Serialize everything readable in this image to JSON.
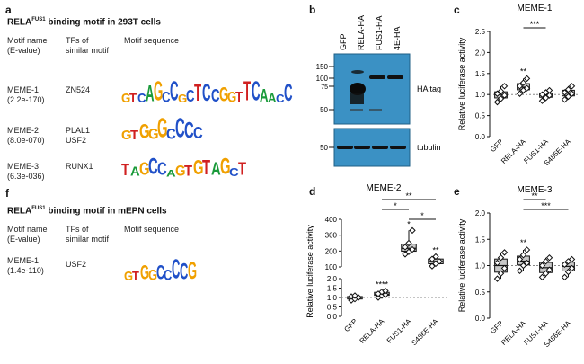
{
  "panel_a": {
    "letter": "a",
    "title_main": "RELA",
    "title_sup": "FUS1",
    "title_rest": " binding motif in 293T cells",
    "headers": {
      "motif_name": "Motif name",
      "evalue": "(E-value)",
      "tfs": "TFs of",
      "tfs2": "similar motif",
      "seq": "Motif sequence"
    },
    "motifs": [
      {
        "name": "MEME-1",
        "evalue": "(2.2e-170)",
        "tf": "ZN524",
        "tf2": "",
        "logo": "GTCAGCCGCTCCGGTTCAACC"
      },
      {
        "name": "MEME-2",
        "evalue": "(8.0e-070)",
        "tf": "PLAL1",
        "tf2": "USF2",
        "logo": "GTGGGCCCC"
      },
      {
        "name": "MEME-3",
        "evalue": "(6.3e-036)",
        "tf": "RUNX1",
        "tf2": "",
        "logo": "TAGCCAGTGTAGCT"
      }
    ]
  },
  "panel_f": {
    "letter": "f",
    "title_main": "RELA",
    "title_sup": "FUS1",
    "title_rest": " binding motif in mEPN cells",
    "headers": {
      "motif_name": "Motif name",
      "evalue": "(E-value)",
      "tfs": "TFs of",
      "tfs2": "similar motif",
      "seq": "Motif sequence"
    },
    "motifs": [
      {
        "name": "MEME-1",
        "evalue": "(1.4e-110)",
        "tf": "USF2",
        "tf2": "",
        "logo": "GTGGCCCCG"
      }
    ]
  },
  "panel_b": {
    "letter": "b",
    "lanes": [
      "GFP",
      "RELA-HA",
      "FUS1-HA",
      "4E-HA"
    ],
    "markers": [
      "150",
      "100",
      "75",
      "50"
    ],
    "marker_bottom": "50",
    "label_top": "HA tag",
    "label_bottom": "tubulin"
  },
  "chart_data": [
    {
      "panel": "c",
      "title": "MEME-1",
      "type": "box",
      "ylabel": "Relative luciferase activity",
      "ylim": [
        0,
        2.5
      ],
      "yticks": [
        "0.0",
        "0.5",
        "1.0",
        "1.5",
        "2.0",
        "2.5"
      ],
      "categories": [
        "GFP",
        "RELA-HA",
        "FUS1-HA",
        "S486E-HA"
      ],
      "series": [
        {
          "points": [
            0.82,
            0.9,
            0.98,
            1.02,
            1.08,
            1.2
          ]
        },
        {
          "points": [
            1.02,
            1.1,
            1.15,
            1.2,
            1.28,
            1.38
          ]
        },
        {
          "points": [
            0.85,
            0.92,
            0.98,
            1.0,
            1.05,
            1.1
          ]
        },
        {
          "points": [
            0.88,
            0.95,
            1.02,
            1.05,
            1.12,
            1.2
          ]
        }
      ],
      "significance": [
        {
          "from": 1,
          "to": 2,
          "label": "***"
        },
        {
          "at": 1,
          "label": "**"
        }
      ]
    },
    {
      "panel": "d",
      "title": "MEME-2",
      "type": "box",
      "ylabel": "Relative luciferase activity",
      "yticks_upper": [
        "400",
        "300",
        "200",
        "100"
      ],
      "yticks_lower": [
        "2.0",
        "1.5",
        "1.0",
        "0.5",
        "0.0"
      ],
      "categories": [
        "GFP",
        "RELA-HA",
        "FUS1-HA",
        "S486E-HA"
      ],
      "series": [
        {
          "points": [
            0.85,
            0.92,
            1.0,
            1.05,
            1.1
          ]
        },
        {
          "points": [
            1.0,
            1.1,
            1.15,
            1.2,
            1.3,
            1.35
          ]
        },
        {
          "points": [
            180,
            195,
            210,
            225,
            250,
            330
          ]
        },
        {
          "points": [
            105,
            120,
            135,
            150,
            165
          ]
        }
      ],
      "significance": [
        {
          "from": 1,
          "to": 3,
          "label": "**"
        },
        {
          "from": 1,
          "to": 2,
          "label": "*"
        },
        {
          "from": 2,
          "to": 3,
          "label": "*"
        },
        {
          "at": 1,
          "label": "****"
        },
        {
          "at": 2,
          "label": "*"
        },
        {
          "at": 3,
          "label": "**"
        }
      ]
    },
    {
      "panel": "e",
      "title": "MEME-3",
      "type": "box",
      "ylabel": "Relative luciferase activity",
      "ylim": [
        0,
        2.0
      ],
      "yticks": [
        "0.0",
        "0.5",
        "1.0",
        "1.5",
        "2.0"
      ],
      "categories": [
        "GFP",
        "RELA-HA",
        "FUS1-HA",
        "S486E-HA"
      ],
      "series": [
        {
          "points": [
            0.75,
            0.85,
            0.95,
            1.05,
            1.15,
            1.25
          ]
        },
        {
          "points": [
            0.9,
            1.0,
            1.05,
            1.12,
            1.2,
            1.3
          ]
        },
        {
          "points": [
            0.78,
            0.85,
            0.92,
            1.0,
            1.08,
            1.15
          ]
        },
        {
          "points": [
            0.78,
            0.88,
            0.95,
            1.02,
            1.08,
            1.12
          ]
        }
      ],
      "significance": [
        {
          "from": 1,
          "to": 3,
          "label": "***"
        },
        {
          "from": 1,
          "to": 2,
          "label": "**"
        },
        {
          "at": 1,
          "label": "**"
        }
      ]
    }
  ]
}
